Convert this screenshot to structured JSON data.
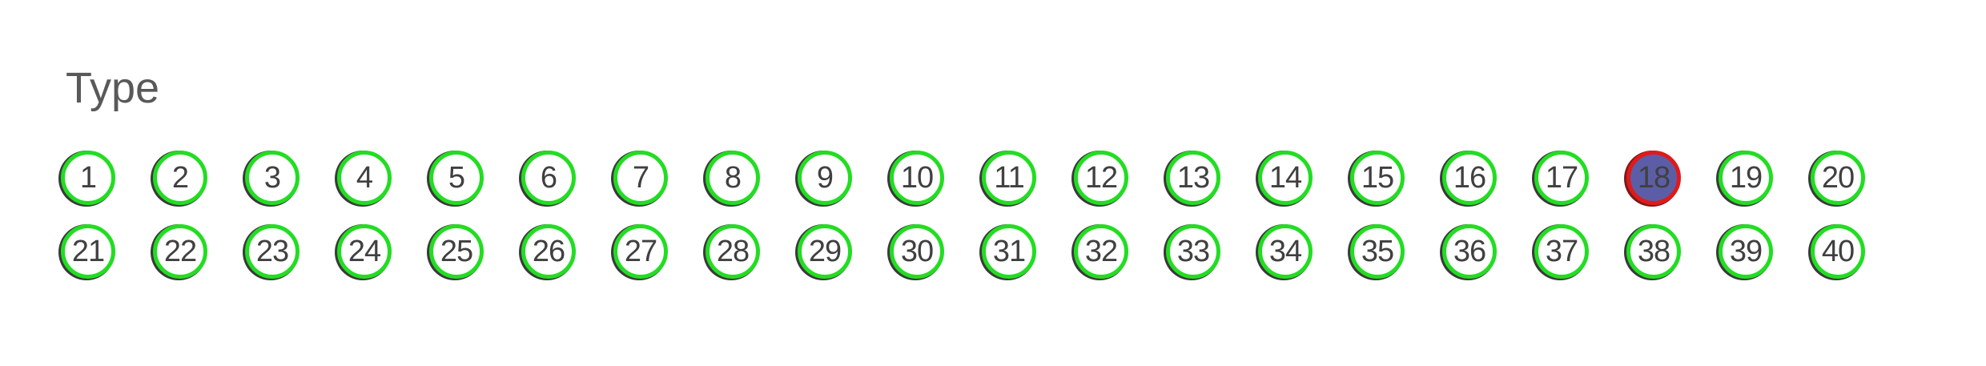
{
  "title": "Type",
  "colors": {
    "ring": "#22dd22",
    "selected_ring": "#e01a1a",
    "selected_fill": "#5b5ea6",
    "text": "#404040"
  },
  "options": [
    {
      "label": "1",
      "selected": false
    },
    {
      "label": "2",
      "selected": false
    },
    {
      "label": "3",
      "selected": false
    },
    {
      "label": "4",
      "selected": false
    },
    {
      "label": "5",
      "selected": false
    },
    {
      "label": "6",
      "selected": false
    },
    {
      "label": "7",
      "selected": false
    },
    {
      "label": "8",
      "selected": false
    },
    {
      "label": "9",
      "selected": false
    },
    {
      "label": "10",
      "selected": false
    },
    {
      "label": "11",
      "selected": false
    },
    {
      "label": "12",
      "selected": false
    },
    {
      "label": "13",
      "selected": false
    },
    {
      "label": "14",
      "selected": false
    },
    {
      "label": "15",
      "selected": false
    },
    {
      "label": "16",
      "selected": false
    },
    {
      "label": "17",
      "selected": false
    },
    {
      "label": "18",
      "selected": true
    },
    {
      "label": "19",
      "selected": false
    },
    {
      "label": "20",
      "selected": false
    },
    {
      "label": "21",
      "selected": false
    },
    {
      "label": "22",
      "selected": false
    },
    {
      "label": "23",
      "selected": false
    },
    {
      "label": "24",
      "selected": false
    },
    {
      "label": "25",
      "selected": false
    },
    {
      "label": "26",
      "selected": false
    },
    {
      "label": "27",
      "selected": false
    },
    {
      "label": "28",
      "selected": false
    },
    {
      "label": "29",
      "selected": false
    },
    {
      "label": "30",
      "selected": false
    },
    {
      "label": "31",
      "selected": false
    },
    {
      "label": "32",
      "selected": false
    },
    {
      "label": "33",
      "selected": false
    },
    {
      "label": "34",
      "selected": false
    },
    {
      "label": "35",
      "selected": false
    },
    {
      "label": "36",
      "selected": false
    },
    {
      "label": "37",
      "selected": false
    },
    {
      "label": "38",
      "selected": false
    },
    {
      "label": "39",
      "selected": false
    },
    {
      "label": "40",
      "selected": false
    }
  ]
}
